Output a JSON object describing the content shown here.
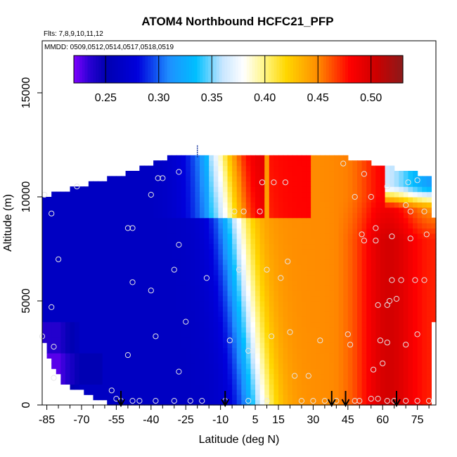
{
  "chart_data": {
    "type": "heatmap",
    "title": "ATOM4 Northbound HCFC21_PFP",
    "subtitle_flights": "Flts: 7,8,9,10,11,12",
    "subtitle_dates": "MMDD: 0509,0512,0514,0517,0518,0519",
    "xlabel": "Latitude (deg N)",
    "ylabel": "Altitude (m)",
    "xlim": [
      -87,
      83
    ],
    "ylim": [
      0,
      17500
    ],
    "x_tick_labels": [
      "-85",
      "-70",
      "-55",
      "-40",
      "-25",
      "-10",
      "5",
      "15",
      "30",
      "45",
      "60",
      "75"
    ],
    "x_tick_values": [
      -85,
      -70,
      -55,
      -40,
      -25,
      -10,
      5,
      15,
      30,
      45,
      60,
      75
    ],
    "x_minor_tick_values": [
      -80,
      -75,
      -65,
      -60,
      -50,
      -45,
      -35,
      -30,
      -20,
      -15,
      -5,
      0,
      10,
      20,
      25,
      35,
      40,
      50,
      55,
      65,
      70,
      80
    ],
    "y_tick_labels": [
      "0",
      "5000",
      "10000",
      "15000"
    ],
    "y_tick_values": [
      0,
      5000,
      10000,
      15000
    ],
    "colorbar": {
      "range": [
        0.22,
        0.53
      ],
      "tick_labels": [
        "0.25",
        "0.30",
        "0.35",
        "0.40",
        "0.45",
        "0.50"
      ],
      "tick_values": [
        0.25,
        0.3,
        0.35,
        0.4,
        0.45,
        0.5
      ],
      "colors": [
        "#8000ff",
        "#0000b0",
        "#0000cc",
        "#1e90ff",
        "#00bfff",
        "#ffffff",
        "#fff176",
        "#ffd000",
        "#ff8c00",
        "#ff0000",
        "#cc0000",
        "#8b1a1a"
      ]
    },
    "surface": {
      "description_levels_m": [
        0,
        1000,
        2000,
        3000,
        4000,
        5000,
        6000,
        7000,
        8000,
        9000,
        10000,
        11000,
        12000
      ],
      "lat_extent_by_level": [
        [
          -55,
          81
        ],
        [
          -77,
          81
        ],
        [
          -82,
          81
        ],
        [
          -85,
          81
        ],
        [
          -86,
          81
        ],
        [
          -86,
          82
        ],
        [
          -86,
          82
        ],
        [
          -86,
          82
        ],
        [
          -86,
          82
        ],
        [
          -86,
          81
        ],
        [
          -86,
          80
        ],
        [
          -54,
          79
        ],
        [
          -30,
          40
        ]
      ]
    },
    "sample_points": [
      [
        -87,
        3300
      ],
      [
        -82,
        2800
      ],
      [
        -82,
        1300
      ],
      [
        -83,
        4700
      ],
      [
        -80,
        7000
      ],
      [
        -83,
        9200
      ],
      [
        -86,
        10100
      ],
      [
        -72,
        10500
      ],
      [
        -53,
        200
      ],
      [
        -48,
        200
      ],
      [
        -45,
        200
      ],
      [
        -38,
        200
      ],
      [
        -30,
        200
      ],
      [
        -23,
        200
      ],
      [
        -18,
        200
      ],
      [
        -8,
        200
      ],
      [
        2,
        200
      ],
      [
        10,
        200
      ],
      [
        -57,
        700
      ],
      [
        -55,
        300
      ],
      [
        -50,
        2400
      ],
      [
        -48,
        5900
      ],
      [
        -50,
        8500
      ],
      [
        -48,
        8500
      ],
      [
        -37,
        10900
      ],
      [
        -40,
        10100
      ],
      [
        -40,
        5500
      ],
      [
        -38,
        3300
      ],
      [
        -28,
        11200
      ],
      [
        -35,
        10900
      ],
      [
        -28,
        7700
      ],
      [
        -30,
        6500
      ],
      [
        -25,
        4000
      ],
      [
        -28,
        1600
      ],
      [
        -16,
        6100
      ],
      [
        -4,
        9300
      ],
      [
        -2,
        6500
      ],
      [
        0,
        9300
      ],
      [
        2,
        2600
      ],
      [
        -6,
        3100
      ],
      [
        7,
        9300
      ],
      [
        8,
        10700
      ],
      [
        10,
        6500
      ],
      [
        12,
        3300
      ],
      [
        13,
        10700
      ],
      [
        18,
        10700
      ],
      [
        19,
        6900
      ],
      [
        16,
        6100
      ],
      [
        25,
        200
      ],
      [
        30,
        200
      ],
      [
        35,
        200
      ],
      [
        40,
        200
      ],
      [
        20,
        3500
      ],
      [
        22,
        1400
      ],
      [
        28,
        1400
      ],
      [
        33,
        3100
      ],
      [
        45,
        3400
      ],
      [
        46,
        2900
      ],
      [
        48,
        200
      ],
      [
        50,
        200
      ],
      [
        55,
        300
      ],
      [
        58,
        300
      ],
      [
        62,
        200
      ],
      [
        65,
        200
      ],
      [
        70,
        200
      ],
      [
        75,
        200
      ],
      [
        80,
        200
      ],
      [
        56,
        1700
      ],
      [
        60,
        2000
      ],
      [
        62,
        3000
      ],
      [
        59,
        3100
      ],
      [
        70,
        2900
      ],
      [
        75,
        3400
      ],
      [
        62,
        4800
      ],
      [
        63,
        5000
      ],
      [
        66,
        5100
      ],
      [
        64,
        6000
      ],
      [
        68,
        6000
      ],
      [
        74,
        6000
      ],
      [
        78,
        6000
      ],
      [
        58,
        4800
      ],
      [
        52,
        7900
      ],
      [
        57,
        7900
      ],
      [
        64,
        8100
      ],
      [
        72,
        8000
      ],
      [
        79,
        8200
      ],
      [
        57,
        8500
      ],
      [
        51,
        8200
      ],
      [
        72,
        9300
      ],
      [
        78,
        9300
      ],
      [
        70,
        9600
      ],
      [
        55,
        10000
      ],
      [
        62,
        10500
      ],
      [
        71,
        10700
      ],
      [
        75,
        10800
      ],
      [
        52,
        11100
      ],
      [
        43,
        11600
      ],
      [
        48,
        10000
      ]
    ],
    "arrows_latitudes": [
      -53,
      -8,
      38,
      44,
      66
    ]
  }
}
